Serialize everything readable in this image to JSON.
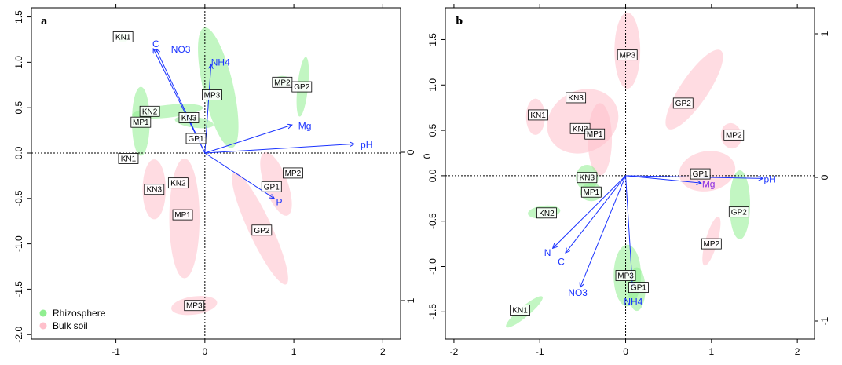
{
  "legend": {
    "items": [
      {
        "label": "Rhizosphere",
        "color": "#90ee90"
      },
      {
        "label": "Bulk soil",
        "color": "#ffc0cb"
      }
    ]
  },
  "colors": {
    "arrow": "#1a33ff",
    "vector_label": "#1a33ff",
    "mg_label_b": "#8a2be2"
  },
  "chart_data": [
    {
      "type": "scatter",
      "panel_label": "a",
      "title": "",
      "xlabel": "",
      "ylabel": "",
      "xlim": [
        -1.95,
        2.2
      ],
      "ylim": [
        -2.05,
        1.6
      ],
      "x_ticks": [
        -1,
        0,
        1,
        2
      ],
      "y_ticks": [
        -2.0,
        -1.5,
        -1.0,
        -0.5,
        0.0,
        0.5,
        1.0,
        1.5
      ],
      "right_axis": {
        "ticks": [
          "0",
          "1"
        ]
      },
      "legend_position": "bottom-left",
      "points": [
        {
          "label": "KN1",
          "x": -0.92,
          "y": 1.28,
          "group": "Rhizosphere"
        },
        {
          "label": "KN2",
          "x": -0.62,
          "y": 0.46,
          "group": "Rhizosphere"
        },
        {
          "label": "MP1",
          "x": -0.72,
          "y": 0.34,
          "group": "Rhizosphere"
        },
        {
          "label": "KN3",
          "x": -0.18,
          "y": 0.39,
          "group": "Rhizosphere"
        },
        {
          "label": "MP3",
          "x": 0.08,
          "y": 0.64,
          "group": "Rhizosphere"
        },
        {
          "label": "GP1",
          "x": -0.1,
          "y": 0.16,
          "group": "Rhizosphere"
        },
        {
          "label": "MP2",
          "x": 0.87,
          "y": 0.78,
          "group": "Rhizosphere"
        },
        {
          "label": "GP2",
          "x": 1.09,
          "y": 0.73,
          "group": "Rhizosphere"
        },
        {
          "label": "KN1",
          "x": -0.86,
          "y": -0.06,
          "group": "Bulk soil"
        },
        {
          "label": "KN2",
          "x": -0.3,
          "y": -0.33,
          "group": "Bulk soil"
        },
        {
          "label": "KN3",
          "x": -0.57,
          "y": -0.4,
          "group": "Bulk soil"
        },
        {
          "label": "MP1",
          "x": -0.25,
          "y": -0.68,
          "group": "Bulk soil"
        },
        {
          "label": "MP2",
          "x": 0.99,
          "y": -0.22,
          "group": "Bulk soil"
        },
        {
          "label": "GP1",
          "x": 0.75,
          "y": -0.37,
          "group": "Bulk soil"
        },
        {
          "label": "GP2",
          "x": 0.64,
          "y": -0.85,
          "group": "Bulk soil"
        },
        {
          "label": "MP3",
          "x": -0.12,
          "y": -1.68,
          "group": "Bulk soil"
        }
      ],
      "ellipses": [
        {
          "group": "Rhizosphere",
          "cx": -0.92,
          "cy": 1.27,
          "rx": 0.06,
          "ry": 0.05,
          "angle": 0
        },
        {
          "group": "Rhizosphere",
          "cx": -0.72,
          "cy": 0.35,
          "rx": 0.1,
          "ry": 0.38,
          "angle": 0
        },
        {
          "group": "Rhizosphere",
          "cx": -0.42,
          "cy": 0.46,
          "rx": 0.4,
          "ry": 0.07,
          "angle": -6
        },
        {
          "group": "Rhizosphere",
          "cx": -0.12,
          "cy": 0.34,
          "rx": 0.22,
          "ry": 0.06,
          "angle": 8
        },
        {
          "group": "Rhizosphere",
          "cx": 0.15,
          "cy": 0.72,
          "rx": 0.17,
          "ry": 0.68,
          "angle": -13
        },
        {
          "group": "Rhizosphere",
          "cx": 0.87,
          "cy": 0.79,
          "rx": 0.1,
          "ry": 0.06,
          "angle": 0
        },
        {
          "group": "Rhizosphere",
          "cx": 1.1,
          "cy": 0.73,
          "rx": 0.06,
          "ry": 0.33,
          "angle": 6
        },
        {
          "group": "Bulk soil",
          "cx": -0.57,
          "cy": -0.4,
          "rx": 0.13,
          "ry": 0.33,
          "angle": 0
        },
        {
          "group": "Bulk soil",
          "cx": -0.23,
          "cy": -0.72,
          "rx": 0.17,
          "ry": 0.66,
          "angle": 0
        },
        {
          "group": "Bulk soil",
          "cx": 0.8,
          "cy": -0.34,
          "rx": 0.13,
          "ry": 0.37,
          "angle": -20
        },
        {
          "group": "Bulk soil",
          "cx": 0.62,
          "cy": -0.83,
          "rx": 0.13,
          "ry": 0.68,
          "angle": -25
        },
        {
          "group": "Bulk soil",
          "cx": -0.12,
          "cy": -1.68,
          "rx": 0.26,
          "ry": 0.1,
          "angle": -8
        }
      ],
      "vectors": [
        {
          "label": "C",
          "x": -0.58,
          "y": 1.15,
          "label_x": -0.59,
          "label_y": 1.2
        },
        {
          "label": "NO3",
          "x": -0.55,
          "y": 1.15,
          "label_x": -0.38,
          "label_y": 1.14
        },
        {
          "label": "NH4",
          "x": 0.07,
          "y": 0.98,
          "label_x": 0.07,
          "label_y": 1.0
        },
        {
          "label": "Mg",
          "x": 0.98,
          "y": 0.31,
          "label_x": 1.05,
          "label_y": 0.3
        },
        {
          "label": "pH",
          "x": 1.68,
          "y": 0.1,
          "label_x": 1.75,
          "label_y": 0.09
        },
        {
          "label": "P",
          "x": 0.78,
          "y": -0.5,
          "label_x": 0.8,
          "label_y": -0.54
        }
      ]
    },
    {
      "type": "scatter",
      "panel_label": "b",
      "title": "",
      "xlabel": "",
      "ylabel": "",
      "xlim": [
        -2.1,
        2.2
      ],
      "ylim": [
        -1.8,
        1.85
      ],
      "x_ticks": [
        -2,
        -1,
        0,
        1,
        2
      ],
      "y_ticks": [
        -1.5,
        -1.0,
        -0.5,
        0.0,
        0.5,
        1.0,
        1.5
      ],
      "left_axis_label": "0",
      "right_axis": {
        "ticks": [
          "-1",
          "0",
          "1"
        ]
      },
      "points": [
        {
          "label": "MP3",
          "x": 0.02,
          "y": 1.33,
          "group": "Bulk soil"
        },
        {
          "label": "KN3",
          "x": -0.58,
          "y": 0.86,
          "group": "Bulk soil"
        },
        {
          "label": "KN1",
          "x": -1.02,
          "y": 0.67,
          "group": "Bulk soil"
        },
        {
          "label": "KN2",
          "x": -0.53,
          "y": 0.52,
          "group": "Bulk soil"
        },
        {
          "label": "MP1",
          "x": -0.36,
          "y": 0.46,
          "group": "Bulk soil"
        },
        {
          "label": "GP2",
          "x": 0.67,
          "y": 0.8,
          "group": "Bulk soil"
        },
        {
          "label": "MP2",
          "x": 1.26,
          "y": 0.45,
          "group": "Bulk soil"
        },
        {
          "label": "GP1",
          "x": 0.87,
          "y": 0.02,
          "group": "Bulk soil"
        },
        {
          "label": "KN3",
          "x": -0.45,
          "y": -0.02,
          "group": "Rhizosphere"
        },
        {
          "label": "MP1",
          "x": -0.4,
          "y": -0.18,
          "group": "Rhizosphere"
        },
        {
          "label": "KN2",
          "x": -0.92,
          "y": -0.41,
          "group": "Rhizosphere"
        },
        {
          "label": "GP2",
          "x": 1.32,
          "y": -0.4,
          "group": "Rhizosphere"
        },
        {
          "label": "MP2",
          "x": 1.0,
          "y": -0.75,
          "group": "Bulk soil"
        },
        {
          "label": "MP3",
          "x": 0.0,
          "y": -1.1,
          "group": "Rhizosphere"
        },
        {
          "label": "GP1",
          "x": 0.15,
          "y": -1.23,
          "group": "Rhizosphere"
        },
        {
          "label": "KN1",
          "x": -1.23,
          "y": -1.48,
          "group": "Rhizosphere"
        }
      ],
      "ellipses": [
        {
          "group": "Bulk soil",
          "cx": 0.02,
          "cy": 1.38,
          "rx": 0.15,
          "ry": 0.42,
          "angle": 0
        },
        {
          "group": "Bulk soil",
          "cx": -0.5,
          "cy": 0.6,
          "rx": 0.43,
          "ry": 0.34,
          "angle": -28
        },
        {
          "group": "Bulk soil",
          "cx": -0.3,
          "cy": 0.4,
          "rx": 0.14,
          "ry": 0.4,
          "angle": 0
        },
        {
          "group": "Bulk soil",
          "cx": -1.05,
          "cy": 0.65,
          "rx": 0.11,
          "ry": 0.2,
          "angle": 0
        },
        {
          "group": "Bulk soil",
          "cx": 0.8,
          "cy": 0.95,
          "rx": 0.16,
          "ry": 0.52,
          "angle": 34
        },
        {
          "group": "Bulk soil",
          "cx": 1.23,
          "cy": 0.44,
          "rx": 0.12,
          "ry": 0.14,
          "angle": -10
        },
        {
          "group": "Bulk soil",
          "cx": 0.95,
          "cy": 0.05,
          "rx": 0.33,
          "ry": 0.22,
          "angle": -10
        },
        {
          "group": "Bulk soil",
          "cx": 1.0,
          "cy": -0.72,
          "rx": 0.07,
          "ry": 0.28,
          "angle": 16
        },
        {
          "group": "Rhizosphere",
          "cx": -0.45,
          "cy": -0.02,
          "rx": 0.13,
          "ry": 0.14,
          "angle": 0
        },
        {
          "group": "Rhizosphere",
          "cx": -0.4,
          "cy": -0.18,
          "rx": 0.13,
          "ry": 0.1,
          "angle": 0
        },
        {
          "group": "Rhizosphere",
          "cx": -0.95,
          "cy": -0.4,
          "rx": 0.19,
          "ry": 0.07,
          "angle": -6
        },
        {
          "group": "Rhizosphere",
          "cx": 1.33,
          "cy": -0.32,
          "rx": 0.12,
          "ry": 0.38,
          "angle": 0
        },
        {
          "group": "Rhizosphere",
          "cx": 0.02,
          "cy": -1.1,
          "rx": 0.16,
          "ry": 0.34,
          "angle": 0
        },
        {
          "group": "Rhizosphere",
          "cx": 0.13,
          "cy": -1.25,
          "rx": 0.1,
          "ry": 0.24,
          "angle": 0
        },
        {
          "group": "Rhizosphere",
          "cx": -1.18,
          "cy": -1.5,
          "rx": 0.06,
          "ry": 0.26,
          "angle": 50
        }
      ],
      "vectors": [
        {
          "label": "pH",
          "x": 1.6,
          "y": -0.03,
          "label_x": 1.61,
          "label_y": -0.04
        },
        {
          "label": "Mg",
          "x": 0.88,
          "y": -0.08,
          "label_x": 0.89,
          "label_y": -0.09,
          "label_color": "#8a2be2"
        },
        {
          "label": "N",
          "x": -0.85,
          "y": -0.8,
          "label_x": -0.95,
          "label_y": -0.85
        },
        {
          "label": "C",
          "x": -0.7,
          "y": -0.85,
          "label_x": -0.79,
          "label_y": -0.95
        },
        {
          "label": "NO3",
          "x": -0.53,
          "y": -1.23,
          "label_x": -0.67,
          "label_y": -1.29
        },
        {
          "label": "NH4",
          "x": 0.08,
          "y": -1.22,
          "label_x": -0.02,
          "label_y": -1.39
        }
      ]
    }
  ]
}
